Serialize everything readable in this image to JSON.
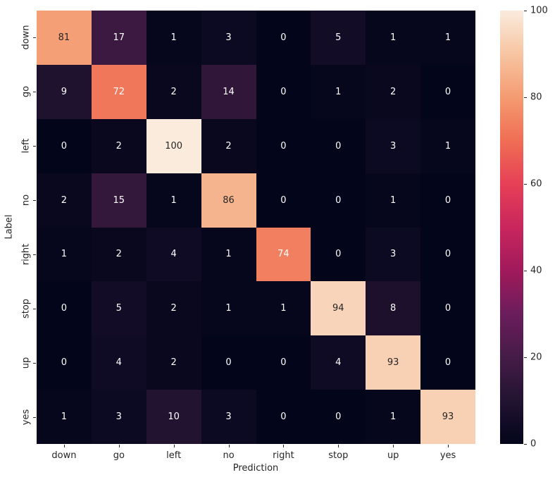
{
  "chart_data": {
    "type": "heatmap",
    "title": "",
    "xlabel": "Prediction",
    "ylabel": "Label",
    "x_categories": [
      "down",
      "go",
      "left",
      "no",
      "right",
      "stop",
      "up",
      "yes"
    ],
    "y_categories": [
      "down",
      "go",
      "left",
      "no",
      "right",
      "stop",
      "up",
      "yes"
    ],
    "matrix": [
      [
        81,
        17,
        1,
        3,
        0,
        5,
        1,
        1
      ],
      [
        9,
        72,
        2,
        14,
        0,
        1,
        2,
        0
      ],
      [
        0,
        2,
        100,
        2,
        0,
        0,
        3,
        1
      ],
      [
        2,
        15,
        1,
        86,
        0,
        0,
        1,
        0
      ],
      [
        1,
        2,
        4,
        1,
        74,
        0,
        3,
        0
      ],
      [
        0,
        5,
        2,
        1,
        1,
        94,
        8,
        0
      ],
      [
        0,
        4,
        2,
        0,
        0,
        4,
        93,
        0
      ],
      [
        1,
        3,
        10,
        3,
        0,
        0,
        1,
        93
      ]
    ],
    "vmin": 0,
    "vmax": 100,
    "annotated": true,
    "colormap": "rocket",
    "legend_position": "right-colorbar",
    "colorbar_ticks": [
      0,
      20,
      40,
      60,
      80,
      100
    ],
    "grid": false
  },
  "colors": {
    "background": "#ffffff",
    "annotation_dark": "#262626",
    "annotation_light": "#ffffff",
    "axis_text": "#262626",
    "rocket_stops": [
      {
        "t": 0.0,
        "color": "#03051B"
      },
      {
        "t": 0.1,
        "color": "#221331"
      },
      {
        "t": 0.2,
        "color": "#451C47"
      },
      {
        "t": 0.3,
        "color": "#6B1D5C"
      },
      {
        "t": 0.4,
        "color": "#A11A5B"
      },
      {
        "t": 0.5,
        "color": "#C9265D"
      },
      {
        "t": 0.6,
        "color": "#E64056"
      },
      {
        "t": 0.7,
        "color": "#F06E54"
      },
      {
        "t": 0.8,
        "color": "#F49B71"
      },
      {
        "t": 0.9,
        "color": "#F7C5A2"
      },
      {
        "t": 1.0,
        "color": "#FAEBDD"
      }
    ]
  }
}
